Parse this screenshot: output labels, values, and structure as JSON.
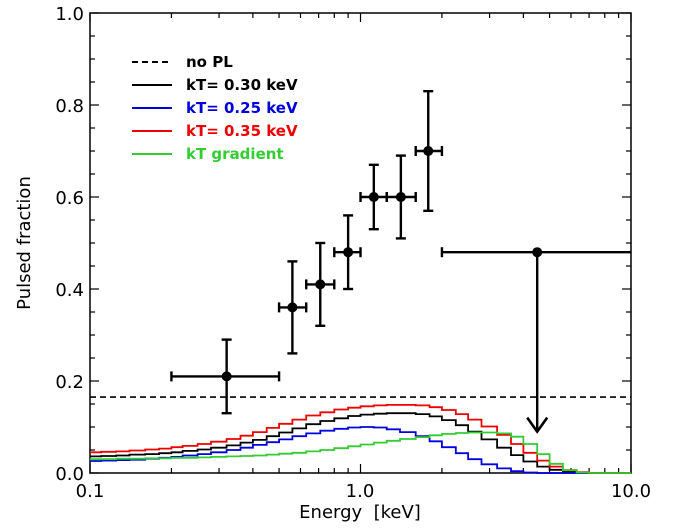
{
  "chart_data": {
    "type": "scatter",
    "xlabel": "Energy  [keV]",
    "ylabel": "Pulsed fraction",
    "xscale": "log",
    "xlim": [
      0.1,
      10.0
    ],
    "ylim": [
      0.0,
      1.0
    ],
    "grid": false,
    "legend_position": "top-left",
    "x_tick_labels": [
      "0.1",
      "1.0",
      "10.0"
    ],
    "y_tick_labels": [
      "0.0",
      "0.2",
      "0.4",
      "0.6",
      "0.8",
      "1.0"
    ],
    "x_ticks": [
      0.1,
      1.0,
      10.0
    ],
    "y_ticks": [
      0.0,
      0.2,
      0.4,
      0.6,
      0.8,
      1.0
    ],
    "data_points": {
      "color": "#000000",
      "points": [
        {
          "x": 0.32,
          "y": 0.21,
          "xlo": 0.2,
          "xhi": 0.5,
          "ylo": 0.13,
          "yhi": 0.29
        },
        {
          "x": 0.56,
          "y": 0.36,
          "xlo": 0.5,
          "xhi": 0.63,
          "ylo": 0.26,
          "yhi": 0.46
        },
        {
          "x": 0.71,
          "y": 0.41,
          "xlo": 0.63,
          "xhi": 0.8,
          "ylo": 0.32,
          "yhi": 0.5
        },
        {
          "x": 0.9,
          "y": 0.48,
          "xlo": 0.8,
          "xhi": 1.0,
          "ylo": 0.4,
          "yhi": 0.56
        },
        {
          "x": 1.12,
          "y": 0.6,
          "xlo": 1.0,
          "xhi": 1.25,
          "ylo": 0.53,
          "yhi": 0.67
        },
        {
          "x": 1.41,
          "y": 0.6,
          "xlo": 1.25,
          "xhi": 1.6,
          "ylo": 0.51,
          "yhi": 0.69
        },
        {
          "x": 1.78,
          "y": 0.7,
          "xlo": 1.6,
          "xhi": 2.0,
          "ylo": 0.57,
          "yhi": 0.83
        }
      ]
    },
    "upper_limit": {
      "x": 4.5,
      "y": 0.48,
      "xlo": 2.0,
      "xhi": 10.0,
      "arrow_to": 0.09
    },
    "series": [
      {
        "name": "no PL",
        "color": "#000000",
        "style": "dashed",
        "kind": "hline",
        "y": 0.165
      },
      {
        "name": "kT= 0.30 keV",
        "color": "#000000",
        "style": "step",
        "x": [
          0.1,
          0.11,
          0.125,
          0.14,
          0.16,
          0.18,
          0.2,
          0.22,
          0.25,
          0.28,
          0.32,
          0.36,
          0.4,
          0.45,
          0.5,
          0.56,
          0.63,
          0.71,
          0.8,
          0.9,
          1.0,
          1.12,
          1.25,
          1.4,
          1.6,
          1.8,
          2.0,
          2.25,
          2.5,
          2.8,
          3.2,
          3.6,
          4.0,
          4.5,
          5.0,
          5.6,
          6.3,
          7.0,
          8.0,
          9.0,
          10.0
        ],
        "values": [
          0.036,
          0.037,
          0.038,
          0.04,
          0.041,
          0.043,
          0.045,
          0.048,
          0.051,
          0.055,
          0.06,
          0.066,
          0.072,
          0.08,
          0.088,
          0.097,
          0.106,
          0.113,
          0.119,
          0.124,
          0.127,
          0.129,
          0.13,
          0.13,
          0.128,
          0.123,
          0.115,
          0.104,
          0.09,
          0.073,
          0.055,
          0.039,
          0.025,
          0.014,
          0.007,
          0.003,
          0.001,
          0,
          0,
          0,
          0
        ]
      },
      {
        "name": "kT= 0.25 keV",
        "color": "#0000dd",
        "style": "step",
        "x": [
          0.1,
          0.11,
          0.125,
          0.14,
          0.16,
          0.18,
          0.2,
          0.22,
          0.25,
          0.28,
          0.32,
          0.36,
          0.4,
          0.45,
          0.5,
          0.56,
          0.63,
          0.71,
          0.8,
          0.9,
          1.0,
          1.12,
          1.25,
          1.4,
          1.6,
          1.8,
          2.0,
          2.25,
          2.5,
          2.8,
          3.2,
          3.6,
          4.0,
          4.5,
          5.0,
          5.6,
          6.3,
          7.0,
          8.0,
          9.0,
          10.0
        ],
        "values": [
          0.026,
          0.027,
          0.028,
          0.029,
          0.031,
          0.033,
          0.035,
          0.038,
          0.041,
          0.045,
          0.05,
          0.055,
          0.061,
          0.067,
          0.073,
          0.08,
          0.086,
          0.092,
          0.096,
          0.099,
          0.1,
          0.099,
          0.095,
          0.089,
          0.08,
          0.069,
          0.056,
          0.043,
          0.03,
          0.019,
          0.01,
          0.004,
          0.001,
          0,
          0,
          0,
          0,
          0,
          0,
          0,
          0
        ]
      },
      {
        "name": "kT= 0.35 keV",
        "color": "#ee0000",
        "style": "step",
        "x": [
          0.1,
          0.11,
          0.125,
          0.14,
          0.16,
          0.18,
          0.2,
          0.22,
          0.25,
          0.28,
          0.32,
          0.36,
          0.4,
          0.45,
          0.5,
          0.56,
          0.63,
          0.71,
          0.8,
          0.9,
          1.0,
          1.12,
          1.25,
          1.4,
          1.6,
          1.8,
          2.0,
          2.25,
          2.5,
          2.8,
          3.2,
          3.6,
          4.0,
          4.5,
          5.0,
          5.6,
          6.3,
          7.0,
          8.0,
          9.0,
          10.0
        ],
        "values": [
          0.045,
          0.046,
          0.047,
          0.049,
          0.051,
          0.053,
          0.056,
          0.059,
          0.063,
          0.068,
          0.074,
          0.081,
          0.089,
          0.098,
          0.107,
          0.116,
          0.125,
          0.132,
          0.138,
          0.142,
          0.145,
          0.147,
          0.148,
          0.148,
          0.147,
          0.143,
          0.137,
          0.128,
          0.116,
          0.101,
          0.083,
          0.063,
          0.044,
          0.027,
          0.014,
          0.006,
          0.002,
          0,
          0,
          0,
          0
        ]
      },
      {
        "name": "kT gradient",
        "color": "#33cc33",
        "style": "step",
        "x": [
          0.1,
          0.11,
          0.125,
          0.14,
          0.16,
          0.18,
          0.2,
          0.22,
          0.25,
          0.28,
          0.32,
          0.36,
          0.4,
          0.45,
          0.5,
          0.56,
          0.63,
          0.71,
          0.8,
          0.9,
          1.0,
          1.12,
          1.25,
          1.4,
          1.6,
          1.8,
          2.0,
          2.25,
          2.5,
          2.8,
          3.2,
          3.6,
          4.0,
          4.5,
          5.0,
          5.6,
          6.3,
          7.0,
          8.0,
          9.0,
          10.0
        ],
        "values": [
          0.03,
          0.03,
          0.031,
          0.031,
          0.032,
          0.032,
          0.033,
          0.033,
          0.034,
          0.035,
          0.036,
          0.037,
          0.038,
          0.04,
          0.042,
          0.044,
          0.047,
          0.05,
          0.054,
          0.058,
          0.062,
          0.066,
          0.07,
          0.074,
          0.078,
          0.082,
          0.085,
          0.087,
          0.088,
          0.088,
          0.086,
          0.079,
          0.063,
          0.041,
          0.02,
          0.006,
          0.001,
          0,
          0,
          0,
          0
        ]
      }
    ]
  }
}
